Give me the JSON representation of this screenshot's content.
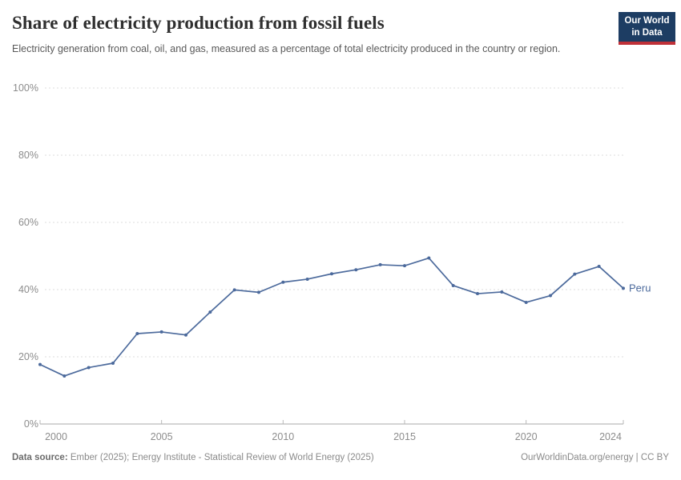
{
  "header": {
    "title": "Share of electricity production from fossil fuels",
    "subtitle": "Electricity generation from coal, oil, and gas, measured as a percentage of total electricity produced in the country or region.",
    "logo": {
      "line1": "Our World",
      "line2": "in Data"
    }
  },
  "chart_data": {
    "type": "line",
    "title": "Share of electricity production from fossil fuels",
    "xlabel": "",
    "ylabel": "",
    "unit": "%",
    "ylim": [
      0,
      100
    ],
    "yticks": [
      0,
      20,
      40,
      60,
      80,
      100
    ],
    "xticks": [
      2000,
      2005,
      2010,
      2015,
      2020,
      2024
    ],
    "grid": true,
    "x": [
      2000,
      2001,
      2002,
      2003,
      2004,
      2005,
      2006,
      2007,
      2008,
      2009,
      2010,
      2011,
      2012,
      2013,
      2014,
      2015,
      2016,
      2017,
      2018,
      2019,
      2020,
      2021,
      2022,
      2023,
      2024
    ],
    "series": [
      {
        "name": "Peru",
        "values": [
          17.7,
          14.3,
          16.8,
          18.1,
          26.9,
          27.4,
          26.5,
          33.3,
          39.9,
          39.2,
          42.2,
          43.1,
          44.7,
          45.9,
          47.4,
          47.1,
          49.4,
          41.2,
          38.8,
          39.3,
          36.2,
          38.2,
          44.6,
          46.9,
          40.4
        ]
      }
    ],
    "line_color": "#4C6A9C",
    "legend_position": "end-of-line"
  },
  "footer": {
    "datasource_label": "Data source:",
    "datasource_text": " Ember (2025); Energy Institute - Statistical Review of World Energy (2025)",
    "right_text": "OurWorldinData.org/energy | CC BY"
  },
  "colors": {
    "logo_navy": "#1d3d63",
    "logo_red": "#bf3038",
    "line_blue": "#4C6A9C",
    "gridline": "#dcdcdc",
    "axis": "#a8a8a8",
    "tick_label": "#8c8c8c"
  }
}
